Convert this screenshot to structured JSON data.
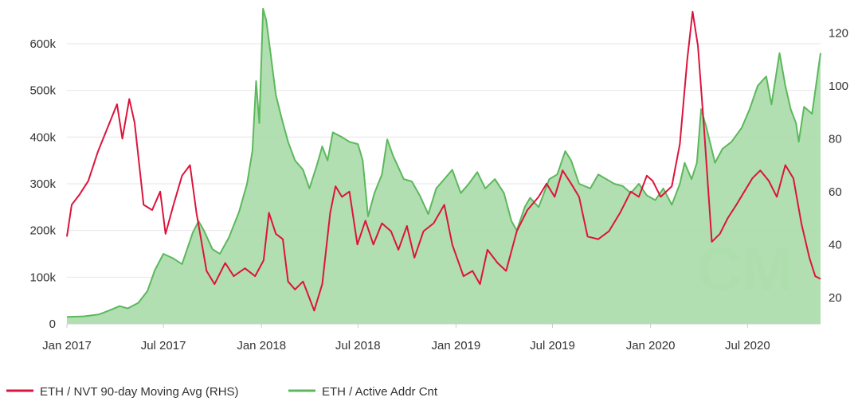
{
  "chart_data": {
    "type": "line",
    "title": "",
    "colors": {
      "nvt": "#dc143c",
      "addr_line": "#5cb85c",
      "addr_fill": "#a8dba8",
      "grid": "#e6e6e6",
      "text": "#333333",
      "watermark": "#cfe8cf"
    },
    "watermark_text": "CM",
    "x_axis": {
      "start": "2017-01-01",
      "end": "2020-11-15",
      "ticks": [
        {
          "label": "Jan 2017",
          "date": "2017-01-01"
        },
        {
          "label": "Jul 2017",
          "date": "2017-07-01"
        },
        {
          "label": "Jan 2018",
          "date": "2018-01-01"
        },
        {
          "label": "Jul 2018",
          "date": "2018-07-01"
        },
        {
          "label": "Jan 2019",
          "date": "2019-01-01"
        },
        {
          "label": "Jul 2019",
          "date": "2019-07-01"
        },
        {
          "label": "Jan 2020",
          "date": "2020-01-01"
        },
        {
          "label": "Jul 2020",
          "date": "2020-07-01"
        }
      ]
    },
    "y_left": {
      "range": [
        0,
        680000
      ],
      "ticks": [
        {
          "label": "0",
          "value": 0
        },
        {
          "label": "100k",
          "value": 100000
        },
        {
          "label": "200k",
          "value": 200000
        },
        {
          "label": "300k",
          "value": 300000
        },
        {
          "label": "400k",
          "value": 400000
        },
        {
          "label": "500k",
          "value": 500000
        },
        {
          "label": "600k",
          "value": 600000
        }
      ]
    },
    "y_right": {
      "range": [
        10,
        130
      ],
      "ticks": [
        {
          "label": "20",
          "value": 20
        },
        {
          "label": "40",
          "value": 40
        },
        {
          "label": "60",
          "value": 60
        },
        {
          "label": "80",
          "value": 80
        },
        {
          "label": "100",
          "value": 100
        },
        {
          "label": "120",
          "value": 120
        }
      ]
    },
    "legend": [
      {
        "label": "ETH / NVT 90-day Moving Avg (RHS)",
        "color": "#dc143c"
      },
      {
        "label": "ETH / Active Addr Cnt",
        "color": "#5cb85c"
      }
    ],
    "series": [
      {
        "name": "ETH / Active Addr Cnt",
        "axis": "left",
        "kind": "area",
        "points": [
          [
            "2017-01-01",
            15000
          ],
          [
            "2017-02-01",
            16000
          ],
          [
            "2017-03-01",
            20000
          ],
          [
            "2017-03-20",
            28000
          ],
          [
            "2017-04-10",
            38000
          ],
          [
            "2017-04-25",
            33000
          ],
          [
            "2017-05-15",
            45000
          ],
          [
            "2017-06-01",
            70000
          ],
          [
            "2017-06-15",
            115000
          ],
          [
            "2017-07-01",
            150000
          ],
          [
            "2017-07-20",
            140000
          ],
          [
            "2017-08-05",
            128000
          ],
          [
            "2017-08-25",
            195000
          ],
          [
            "2017-09-05",
            220000
          ],
          [
            "2017-09-15",
            200000
          ],
          [
            "2017-10-01",
            160000
          ],
          [
            "2017-10-15",
            150000
          ],
          [
            "2017-11-01",
            185000
          ],
          [
            "2017-11-20",
            240000
          ],
          [
            "2017-12-05",
            300000
          ],
          [
            "2017-12-15",
            370000
          ],
          [
            "2017-12-22",
            520000
          ],
          [
            "2017-12-28",
            430000
          ],
          [
            "2018-01-04",
            675000
          ],
          [
            "2018-01-10",
            650000
          ],
          [
            "2018-01-18",
            580000
          ],
          [
            "2018-01-28",
            490000
          ],
          [
            "2018-02-08",
            440000
          ],
          [
            "2018-02-20",
            390000
          ],
          [
            "2018-03-05",
            350000
          ],
          [
            "2018-03-20",
            330000
          ],
          [
            "2018-04-01",
            290000
          ],
          [
            "2018-04-15",
            340000
          ],
          [
            "2018-04-25",
            380000
          ],
          [
            "2018-05-05",
            350000
          ],
          [
            "2018-05-15",
            410000
          ],
          [
            "2018-06-01",
            400000
          ],
          [
            "2018-06-15",
            390000
          ],
          [
            "2018-07-01",
            385000
          ],
          [
            "2018-07-10",
            350000
          ],
          [
            "2018-07-20",
            230000
          ],
          [
            "2018-08-01",
            280000
          ],
          [
            "2018-08-15",
            320000
          ],
          [
            "2018-08-25",
            395000
          ],
          [
            "2018-09-05",
            360000
          ],
          [
            "2018-09-25",
            310000
          ],
          [
            "2018-10-10",
            305000
          ],
          [
            "2018-10-25",
            275000
          ],
          [
            "2018-11-10",
            235000
          ],
          [
            "2018-11-25",
            290000
          ],
          [
            "2018-12-10",
            310000
          ],
          [
            "2018-12-25",
            330000
          ],
          [
            "2019-01-10",
            280000
          ],
          [
            "2019-01-25",
            300000
          ],
          [
            "2019-02-10",
            325000
          ],
          [
            "2019-02-25",
            290000
          ],
          [
            "2019-03-15",
            310000
          ],
          [
            "2019-04-01",
            280000
          ],
          [
            "2019-04-15",
            220000
          ],
          [
            "2019-04-25",
            200000
          ],
          [
            "2019-05-10",
            250000
          ],
          [
            "2019-05-20",
            270000
          ],
          [
            "2019-06-05",
            250000
          ],
          [
            "2019-06-25",
            310000
          ],
          [
            "2019-07-10",
            320000
          ],
          [
            "2019-07-25",
            370000
          ],
          [
            "2019-08-05",
            350000
          ],
          [
            "2019-08-20",
            300000
          ],
          [
            "2019-09-10",
            290000
          ],
          [
            "2019-09-25",
            320000
          ],
          [
            "2019-10-10",
            310000
          ],
          [
            "2019-10-25",
            300000
          ],
          [
            "2019-11-10",
            295000
          ],
          [
            "2019-11-25",
            280000
          ],
          [
            "2019-12-10",
            300000
          ],
          [
            "2019-12-25",
            275000
          ],
          [
            "2020-01-10",
            265000
          ],
          [
            "2020-01-25",
            290000
          ],
          [
            "2020-02-10",
            255000
          ],
          [
            "2020-02-25",
            300000
          ],
          [
            "2020-03-05",
            345000
          ],
          [
            "2020-03-18",
            310000
          ],
          [
            "2020-03-28",
            345000
          ],
          [
            "2020-04-05",
            460000
          ],
          [
            "2020-04-15",
            420000
          ],
          [
            "2020-05-01",
            345000
          ],
          [
            "2020-05-15",
            375000
          ],
          [
            "2020-06-01",
            390000
          ],
          [
            "2020-06-20",
            420000
          ],
          [
            "2020-07-05",
            460000
          ],
          [
            "2020-07-20",
            510000
          ],
          [
            "2020-08-05",
            530000
          ],
          [
            "2020-08-15",
            470000
          ],
          [
            "2020-08-30",
            580000
          ],
          [
            "2020-09-10",
            510000
          ],
          [
            "2020-09-20",
            460000
          ],
          [
            "2020-09-30",
            430000
          ],
          [
            "2020-10-05",
            390000
          ],
          [
            "2020-10-15",
            465000
          ],
          [
            "2020-10-30",
            450000
          ],
          [
            "2020-11-15",
            580000
          ]
        ]
      },
      {
        "name": "ETH / NVT 90-day Moving Avg (RHS)",
        "axis": "right",
        "kind": "line",
        "points": [
          [
            "2017-01-01",
            43
          ],
          [
            "2017-01-10",
            55
          ],
          [
            "2017-01-25",
            59
          ],
          [
            "2017-02-10",
            64
          ],
          [
            "2017-02-28",
            75
          ],
          [
            "2017-03-20",
            85
          ],
          [
            "2017-04-05",
            93
          ],
          [
            "2017-04-15",
            80
          ],
          [
            "2017-04-28",
            95
          ],
          [
            "2017-05-08",
            86
          ],
          [
            "2017-05-25",
            55
          ],
          [
            "2017-06-10",
            53
          ],
          [
            "2017-06-25",
            60
          ],
          [
            "2017-07-05",
            44
          ],
          [
            "2017-07-20",
            55
          ],
          [
            "2017-08-05",
            66
          ],
          [
            "2017-08-20",
            70
          ],
          [
            "2017-09-01",
            52
          ],
          [
            "2017-09-20",
            30
          ],
          [
            "2017-10-05",
            25
          ],
          [
            "2017-10-25",
            33
          ],
          [
            "2017-11-10",
            28
          ],
          [
            "2017-12-01",
            31
          ],
          [
            "2017-12-20",
            28
          ],
          [
            "2018-01-05",
            34
          ],
          [
            "2018-01-15",
            52
          ],
          [
            "2018-01-28",
            44
          ],
          [
            "2018-02-10",
            42
          ],
          [
            "2018-02-20",
            26
          ],
          [
            "2018-03-05",
            23
          ],
          [
            "2018-03-20",
            26
          ],
          [
            "2018-04-10",
            15
          ],
          [
            "2018-04-25",
            25
          ],
          [
            "2018-05-10",
            52
          ],
          [
            "2018-05-20",
            62
          ],
          [
            "2018-06-01",
            58
          ],
          [
            "2018-06-15",
            60
          ],
          [
            "2018-06-30",
            40
          ],
          [
            "2018-07-15",
            49
          ],
          [
            "2018-07-30",
            40
          ],
          [
            "2018-08-15",
            48
          ],
          [
            "2018-09-01",
            45
          ],
          [
            "2018-09-15",
            38
          ],
          [
            "2018-10-01",
            47
          ],
          [
            "2018-10-15",
            35
          ],
          [
            "2018-11-01",
            45
          ],
          [
            "2018-11-20",
            48
          ],
          [
            "2018-12-10",
            55
          ],
          [
            "2018-12-25",
            40
          ],
          [
            "2019-01-15",
            28
          ],
          [
            "2019-02-01",
            30
          ],
          [
            "2019-02-15",
            25
          ],
          [
            "2019-03-01",
            38
          ],
          [
            "2019-03-20",
            33
          ],
          [
            "2019-04-05",
            30
          ],
          [
            "2019-04-25",
            45
          ],
          [
            "2019-05-15",
            53
          ],
          [
            "2019-06-05",
            58
          ],
          [
            "2019-06-20",
            63
          ],
          [
            "2019-07-05",
            58
          ],
          [
            "2019-07-20",
            68
          ],
          [
            "2019-08-05",
            63
          ],
          [
            "2019-08-20",
            58
          ],
          [
            "2019-09-05",
            43
          ],
          [
            "2019-09-25",
            42
          ],
          [
            "2019-10-15",
            45
          ],
          [
            "2019-11-05",
            52
          ],
          [
            "2019-11-25",
            60
          ],
          [
            "2019-12-10",
            58
          ],
          [
            "2019-12-25",
            66
          ],
          [
            "2020-01-05",
            64
          ],
          [
            "2020-01-20",
            58
          ],
          [
            "2020-02-10",
            62
          ],
          [
            "2020-02-25",
            78
          ],
          [
            "2020-03-10",
            110
          ],
          [
            "2020-03-20",
            128
          ],
          [
            "2020-03-30",
            115
          ],
          [
            "2020-04-10",
            85
          ],
          [
            "2020-04-25",
            41
          ],
          [
            "2020-05-10",
            44
          ],
          [
            "2020-05-25",
            50
          ],
          [
            "2020-06-10",
            55
          ],
          [
            "2020-06-25",
            60
          ],
          [
            "2020-07-10",
            65
          ],
          [
            "2020-07-25",
            68
          ],
          [
            "2020-08-10",
            64
          ],
          [
            "2020-08-25",
            58
          ],
          [
            "2020-09-10",
            70
          ],
          [
            "2020-09-25",
            65
          ],
          [
            "2020-10-10",
            48
          ],
          [
            "2020-10-25",
            35
          ],
          [
            "2020-11-05",
            28
          ],
          [
            "2020-11-15",
            27
          ]
        ]
      }
    ]
  }
}
